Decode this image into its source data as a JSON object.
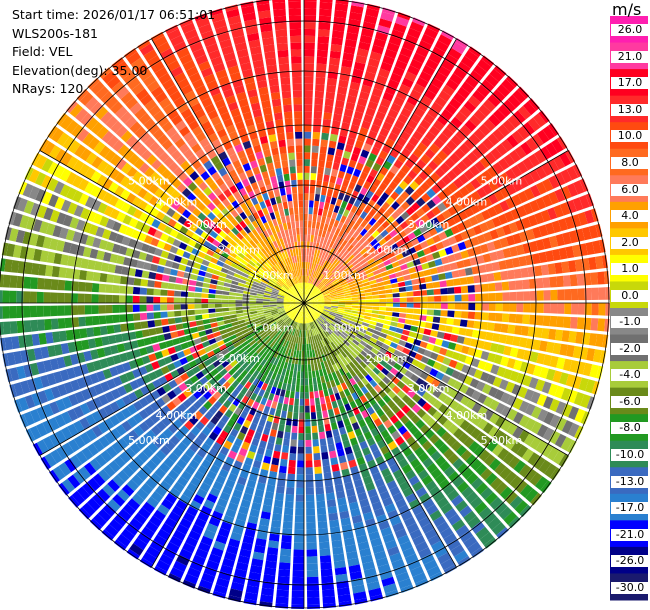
{
  "info": {
    "start_time": "Start time: 2026/01/17 06:51:01",
    "device": "WLS200s-181",
    "field": "Field: VEL",
    "elevation": "Elevation(deg): 35.00",
    "nrays": "NRays: 120"
  },
  "colorbar": {
    "unit": "m/s",
    "ticks": [
      "26.0",
      "21.0",
      "17.0",
      "13.0",
      "10.0",
      "8.0",
      "6.0",
      "4.0",
      "2.0",
      "1.0",
      "0.0",
      "-1.0",
      "-2.0",
      "-4.0",
      "-6.0",
      "-8.0",
      "-10.0",
      "-13.0",
      "-17.0",
      "-21.0",
      "-26.0",
      "-30.0"
    ],
    "colors": [
      "#ff1fb0",
      "#ff3aa0",
      "#ff0020",
      "#ff2a2a",
      "#ff4a10",
      "#ff6a20",
      "#ff7a5a",
      "#ffa000",
      "#ffc800",
      "#ffff00",
      "#c8d80a",
      "#888888",
      "#707070",
      "#a8cc3a",
      "#6a8a1a",
      "#229922",
      "#2e8b57",
      "#3a6ac0",
      "#2a80d0",
      "#0000ff",
      "#000088",
      "#1a1a6e"
    ]
  },
  "chart_data": {
    "type": "ppi",
    "field": "VEL",
    "elevation_deg": 35.0,
    "n_rays": 120,
    "range_rings_km": [
      "1.00km",
      "2.00km",
      "3.00km",
      "4.00km",
      "5.00km"
    ],
    "velocity_range_mps": [
      -30,
      26
    ],
    "max_range_km": 5.0
  }
}
